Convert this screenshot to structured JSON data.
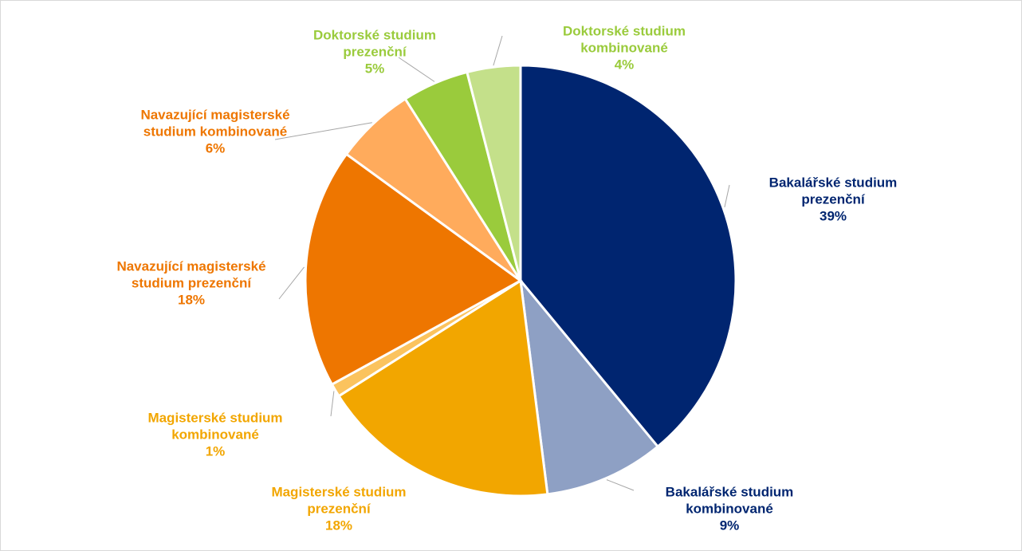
{
  "chart_data": {
    "type": "pie",
    "categories": [
      "Bakalářské studium prezenční",
      "Bakalářské studium kombinované",
      "Magisterské studium prezenční",
      "Magisterské studium kombinované",
      "Navazující magisterské studium prezenční",
      "Navazující magisterské studium kombinované",
      "Doktorské studium prezenční",
      "Doktorské studium kombinované"
    ],
    "values": [
      39,
      9,
      18,
      1,
      18,
      6,
      5,
      4
    ],
    "value_labels": [
      "39%",
      "9%",
      "18%",
      "1%",
      "18%",
      "6%",
      "5%",
      "4%"
    ],
    "colors": [
      "#002570",
      "#8ea0c4",
      "#f2a600",
      "#fbc35e",
      "#ee7600",
      "#ffab5c",
      "#9acb3c",
      "#c4e08a"
    ],
    "label_colors": [
      "#002570",
      "#002570",
      "#f2a600",
      "#f2a600",
      "#ee7600",
      "#ee7600",
      "#9acb3c",
      "#9acb3c"
    ]
  }
}
